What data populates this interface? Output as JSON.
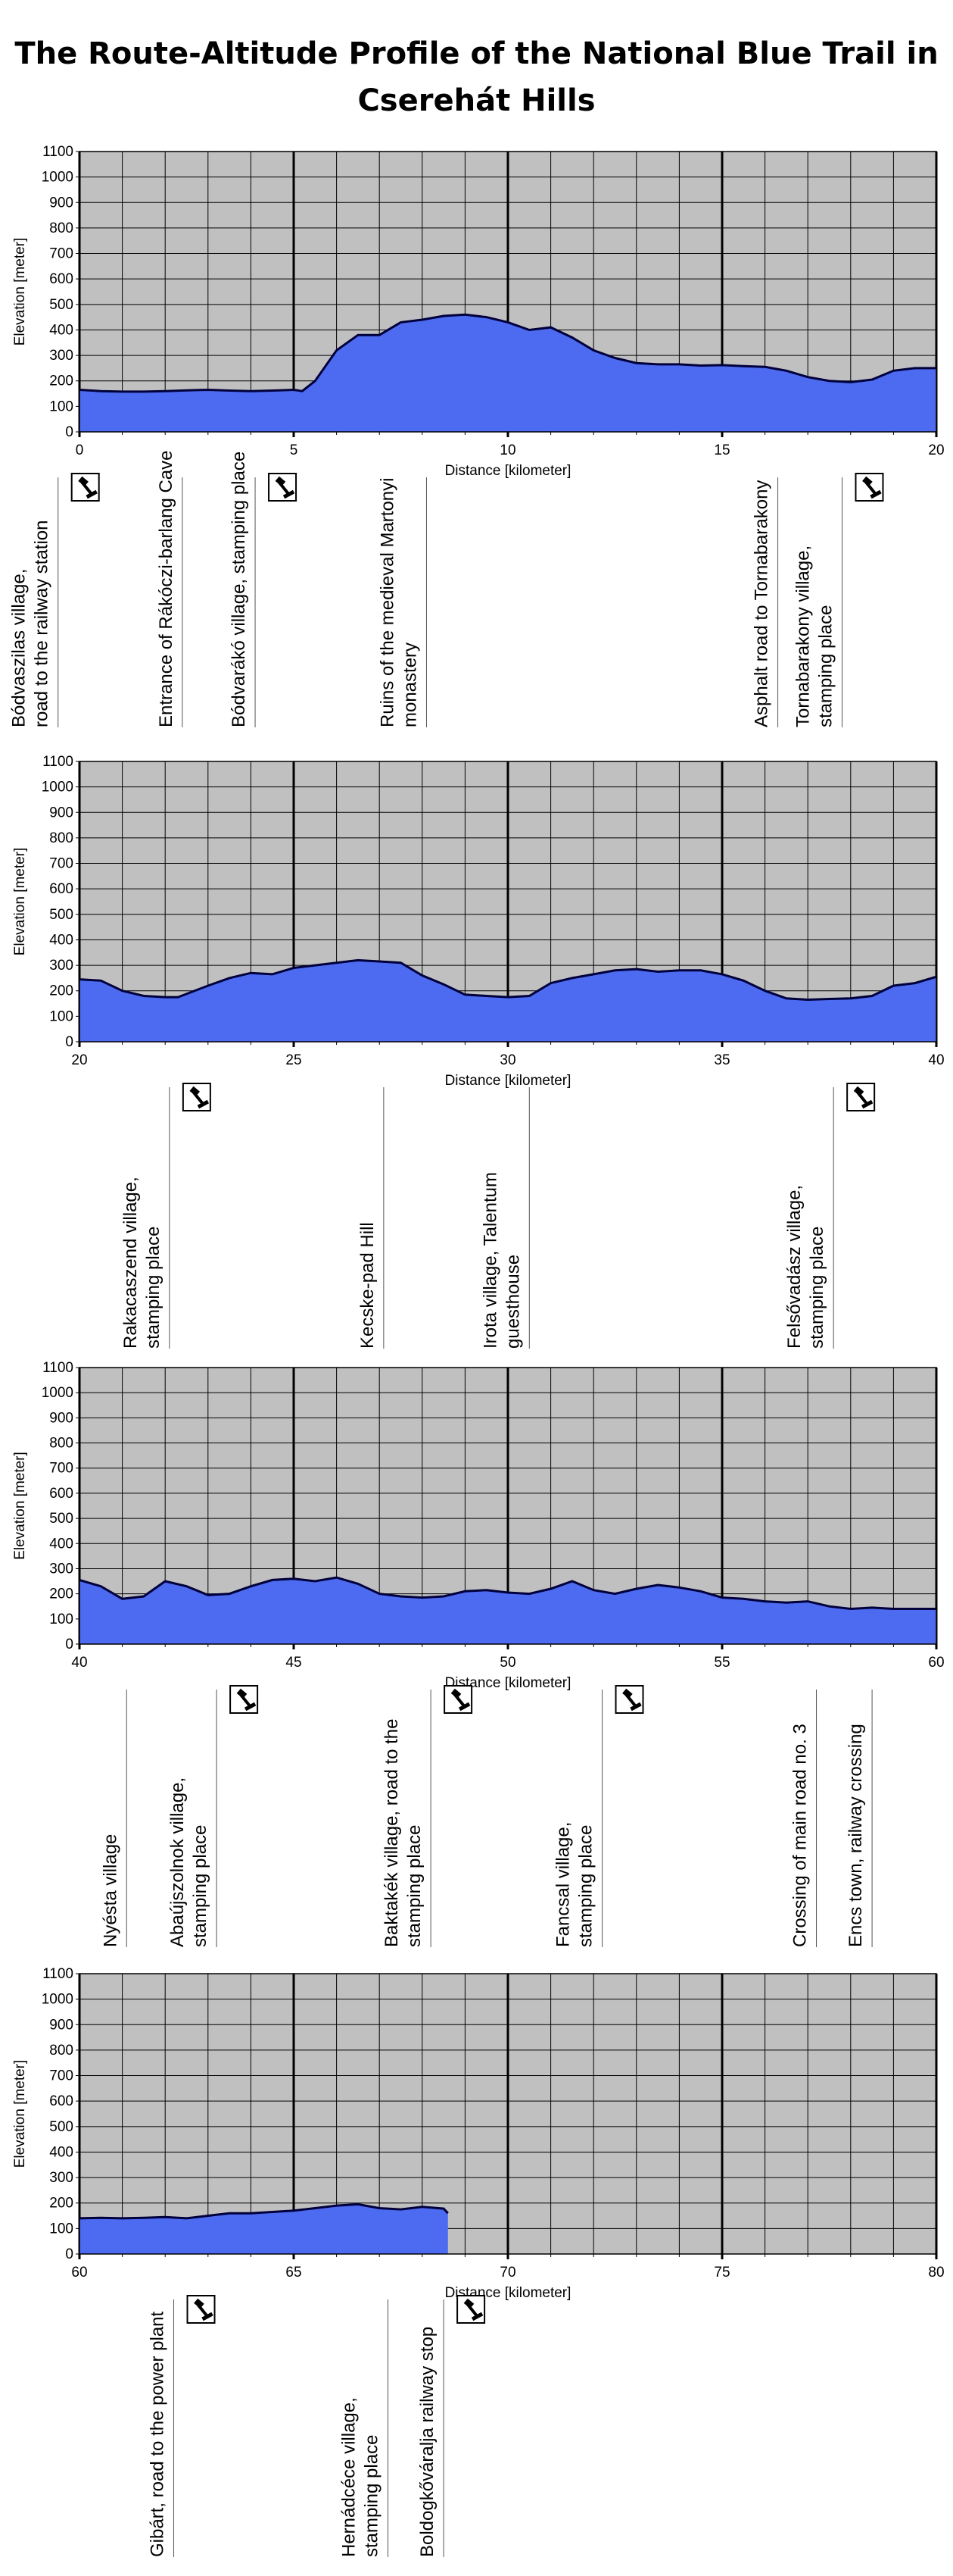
{
  "title_line1": "The Route-Altitude Profile of the National Blue Trail in",
  "title_line2": "Cserehát Hills",
  "colors": {
    "plot_bg": "#c0c0c0",
    "fill": "#4d6bf0",
    "outline": "#00003c",
    "grid": "#000000"
  },
  "stamp_icon": "stamp-icon",
  "chart_data": [
    {
      "type": "area",
      "xlabel": "Distance [kilometer]",
      "ylabel": "Elevation [meter]",
      "xlim": [
        0,
        20
      ],
      "ylim": [
        0,
        1100
      ],
      "x_ticks": [
        0,
        5,
        10,
        15,
        20
      ],
      "y_ticks": [
        0,
        100,
        200,
        300,
        400,
        500,
        600,
        700,
        800,
        900,
        1000,
        1100
      ],
      "grid": true,
      "series": [
        {
          "x": [
            0,
            0.5,
            1,
            1.5,
            2,
            2.5,
            3,
            3.5,
            4,
            4.5,
            5,
            5.2,
            5.5,
            6,
            6.5,
            7,
            7.5,
            8,
            8.5,
            9,
            9.5,
            10,
            10.5,
            11,
            11.5,
            12,
            12.5,
            13,
            13.5,
            14,
            14.5,
            15,
            15.5,
            16,
            16.5,
            17,
            17.5,
            18,
            18.5,
            19,
            19.5,
            20
          ],
          "y": [
            165,
            160,
            158,
            158,
            160,
            163,
            165,
            162,
            160,
            162,
            165,
            160,
            200,
            320,
            380,
            380,
            430,
            440,
            455,
            460,
            450,
            430,
            400,
            410,
            370,
            320,
            290,
            270,
            265,
            265,
            260,
            262,
            258,
            255,
            240,
            215,
            200,
            195,
            205,
            240,
            250,
            250
          ]
        }
      ],
      "annotations": [
        {
          "x": -0.5,
          "text": "Bódvaszilas village,\nroad to the railway station",
          "stamp": true
        },
        {
          "x": 2.4,
          "text": "Entrance of Rákóczi-barlang Cave",
          "stamp": false
        },
        {
          "x": 4.1,
          "text": "Bódvarákó village, stamping place",
          "stamp": true
        },
        {
          "x": 8.1,
          "text": "Ruins of the medieval Martonyi\nmonastery",
          "stamp": false
        },
        {
          "x": 16.3,
          "text": "Asphalt road to Tornabarakony",
          "stamp": false
        },
        {
          "x": 17.8,
          "text": "Tornabarakony village,\nstamping place",
          "stamp": true
        }
      ]
    },
    {
      "type": "area",
      "xlabel": "Distance [kilometer]",
      "ylabel": "Elevation [meter]",
      "xlim": [
        20,
        40
      ],
      "ylim": [
        0,
        1100
      ],
      "x_ticks": [
        20,
        25,
        30,
        35,
        40
      ],
      "y_ticks": [
        0,
        100,
        200,
        300,
        400,
        500,
        600,
        700,
        800,
        900,
        1000,
        1100
      ],
      "grid": true,
      "series": [
        {
          "x": [
            20,
            20.5,
            21,
            21.5,
            22,
            22.3,
            23,
            23.5,
            24,
            24.5,
            25,
            25.5,
            26,
            26.5,
            27,
            27.5,
            28,
            28.5,
            29,
            29.5,
            30,
            30.5,
            31,
            31.5,
            32,
            32.5,
            33,
            33.5,
            34,
            34.5,
            35,
            35.5,
            36,
            36.5,
            37,
            37.5,
            38,
            38.5,
            39,
            39.5,
            40
          ],
          "y": [
            245,
            240,
            200,
            180,
            175,
            175,
            220,
            250,
            270,
            265,
            290,
            300,
            310,
            320,
            315,
            310,
            260,
            225,
            185,
            180,
            175,
            180,
            230,
            250,
            265,
            280,
            285,
            275,
            280,
            280,
            265,
            240,
            200,
            170,
            165,
            168,
            170,
            180,
            220,
            230,
            255
          ]
        }
      ],
      "annotations": [
        {
          "x": 22.1,
          "text": "Rakacaszend village,\nstamping place",
          "stamp": true
        },
        {
          "x": 27.1,
          "text": "Kecske-pad Hill",
          "stamp": false
        },
        {
          "x": 30.5,
          "text": "Irota village, Talentum\nguesthouse",
          "stamp": false
        },
        {
          "x": 37.6,
          "text": "Felsővadász village,\nstamping place",
          "stamp": true
        }
      ]
    },
    {
      "type": "area",
      "xlabel": "Distance [kilometer]",
      "ylabel": "Elevation [meter]",
      "xlim": [
        40,
        60
      ],
      "ylim": [
        0,
        1100
      ],
      "x_ticks": [
        40,
        45,
        50,
        55,
        60
      ],
      "y_ticks": [
        0,
        100,
        200,
        300,
        400,
        500,
        600,
        700,
        800,
        900,
        1000,
        1100
      ],
      "grid": true,
      "series": [
        {
          "x": [
            40,
            40.5,
            41,
            41.5,
            42,
            42.5,
            43,
            43.5,
            44,
            44.5,
            45,
            45.5,
            46,
            46.5,
            47,
            47.5,
            48,
            48.5,
            49,
            49.5,
            50,
            50.5,
            51,
            51.5,
            52,
            52.5,
            53,
            53.5,
            54,
            54.5,
            55,
            55.5,
            56,
            56.5,
            57,
            57.5,
            58,
            58.5,
            59,
            59.5,
            60
          ],
          "y": [
            255,
            230,
            180,
            190,
            250,
            230,
            195,
            200,
            230,
            255,
            260,
            250,
            265,
            240,
            200,
            190,
            185,
            190,
            210,
            215,
            205,
            200,
            220,
            250,
            215,
            200,
            220,
            235,
            225,
            210,
            185,
            180,
            170,
            165,
            170,
            150,
            140,
            145,
            140,
            140,
            140
          ]
        }
      ],
      "annotations": [
        {
          "x": 41.1,
          "text": "Nyésta village",
          "stamp": false
        },
        {
          "x": 43.2,
          "text": "Abaújszolnok village,\nstamping place",
          "stamp": true
        },
        {
          "x": 48.2,
          "text": "Baktakék village, road to the\nstamping place",
          "stamp": true
        },
        {
          "x": 52.2,
          "text": "Fancsal village,\nstamping place",
          "stamp": true
        },
        {
          "x": 57.2,
          "text": "Crossing of main road no. 3",
          "stamp": false
        },
        {
          "x": 58.5,
          "text": "Encs town, railway crossing",
          "stamp": false
        }
      ]
    },
    {
      "type": "area",
      "xlabel": "Distance [kilometer]",
      "ylabel": "Elevation [meter]",
      "xlim": [
        60,
        80
      ],
      "ylim": [
        0,
        1100
      ],
      "x_ticks": [
        60,
        65,
        70,
        75,
        80
      ],
      "y_ticks": [
        0,
        100,
        200,
        300,
        400,
        500,
        600,
        700,
        800,
        900,
        1000,
        1100
      ],
      "grid": true,
      "series": [
        {
          "x": [
            60,
            60.5,
            61,
            61.5,
            62,
            62.5,
            63,
            63.5,
            64,
            64.5,
            65,
            65.5,
            66,
            66.5,
            67,
            67.5,
            68,
            68.5,
            68.6
          ],
          "y": [
            140,
            142,
            140,
            142,
            145,
            140,
            150,
            160,
            160,
            165,
            170,
            180,
            190,
            195,
            180,
            175,
            185,
            178,
            160
          ]
        }
      ],
      "annotations": [
        {
          "x": 62.2,
          "text": "Gibárt, road to the power plant",
          "stamp": true
        },
        {
          "x": 67.2,
          "text": "Hernádcéce village,\nstamping place",
          "stamp": false
        },
        {
          "x": 68.5,
          "text": "Boldogkőváralja railway stop",
          "stamp": true
        }
      ]
    }
  ]
}
